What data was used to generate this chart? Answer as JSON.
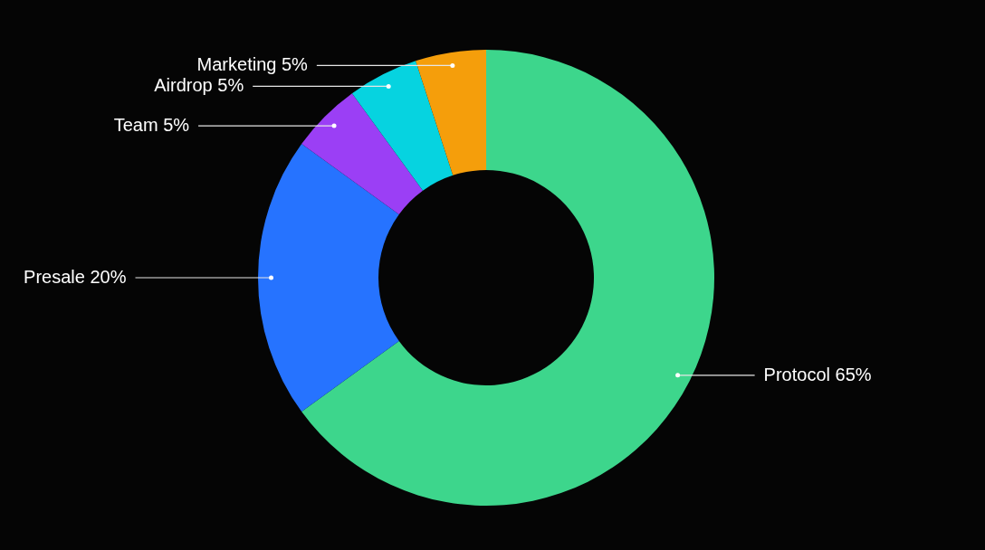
{
  "chart_data": {
    "type": "donut",
    "categories": [
      "Protocol",
      "Presale",
      "Team",
      "Airdrop",
      "Marketing"
    ],
    "values": [
      65,
      20,
      5,
      5,
      5
    ],
    "value_labels": [
      "65%",
      "20%",
      "5%",
      "5%",
      "5%"
    ],
    "colors": [
      "#3dd68c",
      "#2673ff",
      "#9b3ff5",
      "#06d3e0",
      "#f59e0b"
    ]
  }
}
